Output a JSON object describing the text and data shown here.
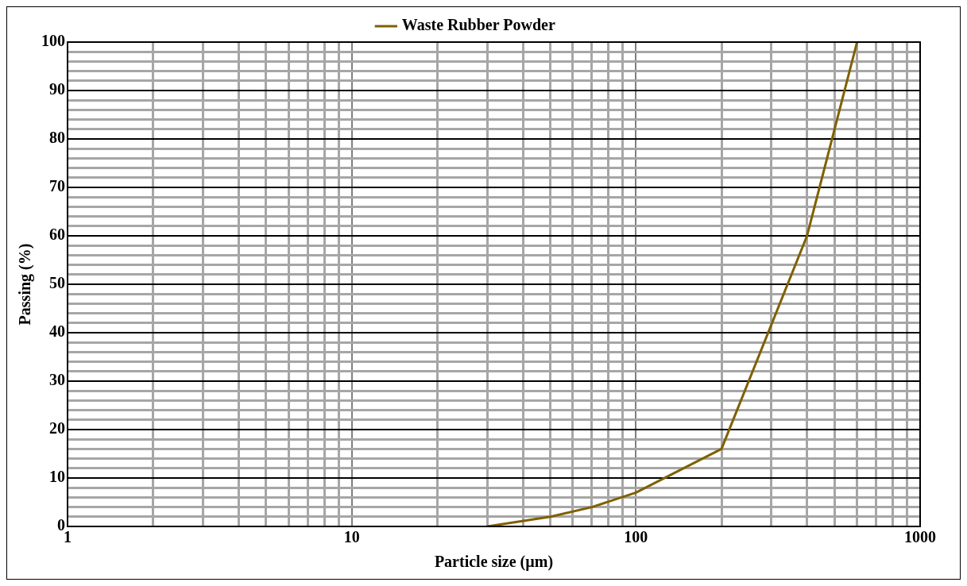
{
  "chart_data": {
    "type": "line",
    "xlabel": "Particle size (µm)",
    "ylabel": "Passing (%)",
    "log": "x",
    "xlim": [
      1,
      1000
    ],
    "ylim": [
      0,
      100
    ],
    "xticks": [
      1,
      {
        "value": 2,
        "label": null
      },
      {
        "value": 3,
        "label": null
      },
      {
        "value": 4,
        "label": null
      },
      {
        "value": 5,
        "label": null
      },
      {
        "value": 6,
        "label": null
      },
      {
        "value": 7,
        "label": null
      },
      {
        "value": 8,
        "label": null
      },
      {
        "value": 9,
        "label": null
      },
      10,
      {
        "value": 20,
        "label": null
      },
      {
        "value": 30,
        "label": null
      },
      {
        "value": 40,
        "label": null
      },
      {
        "value": 50,
        "label": null
      },
      {
        "value": 60,
        "label": null
      },
      {
        "value": 70,
        "label": null
      },
      {
        "value": 80,
        "label": null
      },
      {
        "value": 90,
        "label": null
      },
      100,
      {
        "value": 200,
        "label": null
      },
      {
        "value": 300,
        "label": null
      },
      {
        "value": 400,
        "label": null
      },
      {
        "value": 500,
        "label": null
      },
      {
        "value": 600,
        "label": null
      },
      {
        "value": 700,
        "label": null
      },
      {
        "value": 800,
        "label": null
      },
      {
        "value": 900,
        "label": null
      },
      1000
    ],
    "yticks": [
      0,
      {
        "value": 2,
        "label": null
      },
      {
        "value": 4,
        "label": null
      },
      {
        "value": 6,
        "label": null
      },
      {
        "value": 8,
        "label": null
      },
      10,
      {
        "value": 12,
        "label": null
      },
      {
        "value": 14,
        "label": null
      },
      {
        "value": 16,
        "label": null
      },
      {
        "value": 18,
        "label": null
      },
      20,
      {
        "value": 22,
        "label": null
      },
      {
        "value": 24,
        "label": null
      },
      {
        "value": 26,
        "label": null
      },
      {
        "value": 28,
        "label": null
      },
      30,
      {
        "value": 32,
        "label": null
      },
      {
        "value": 34,
        "label": null
      },
      {
        "value": 36,
        "label": null
      },
      {
        "value": 38,
        "label": null
      },
      40,
      {
        "value": 42,
        "label": null
      },
      {
        "value": 44,
        "label": null
      },
      {
        "value": 46,
        "label": null
      },
      {
        "value": 48,
        "label": null
      },
      50,
      {
        "value": 52,
        "label": null
      },
      {
        "value": 54,
        "label": null
      },
      {
        "value": 56,
        "label": null
      },
      {
        "value": 58,
        "label": null
      },
      60,
      {
        "value": 62,
        "label": null
      },
      {
        "value": 64,
        "label": null
      },
      {
        "value": 66,
        "label": null
      },
      {
        "value": 68,
        "label": null
      },
      70,
      {
        "value": 72,
        "label": null
      },
      {
        "value": 74,
        "label": null
      },
      {
        "value": 76,
        "label": null
      },
      {
        "value": 78,
        "label": null
      },
      80,
      {
        "value": 82,
        "label": null
      },
      {
        "value": 84,
        "label": null
      },
      {
        "value": 86,
        "label": null
      },
      {
        "value": 88,
        "label": null
      },
      90,
      {
        "value": 92,
        "label": null
      },
      {
        "value": 94,
        "label": null
      },
      {
        "value": 96,
        "label": null
      },
      {
        "value": 98,
        "label": null
      },
      100
    ],
    "grid": true,
    "legend": "top",
    "marker": "none",
    "line_style": "solid",
    "series": [
      {
        "name": "Waste Rubber Powder",
        "color": "#7f6000",
        "x": [
          30,
          50,
          70,
          100,
          200,
          400,
          600
        ],
        "values": [
          0,
          2,
          4,
          7,
          16,
          60,
          100
        ]
      }
    ]
  }
}
